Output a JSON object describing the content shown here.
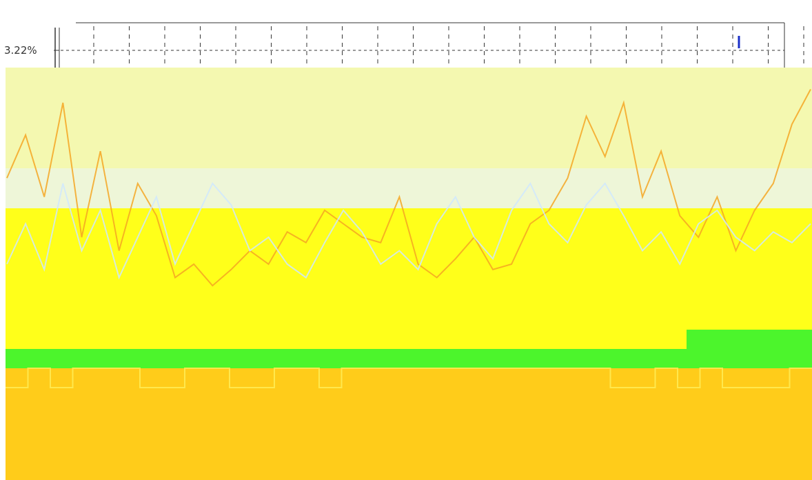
{
  "chart_data": {
    "type": "area",
    "title": "",
    "xlabel": "",
    "ylabel": "",
    "y_tick_labels": [
      "3.22%"
    ],
    "colors": {
      "pale_band": "#f4f8b0",
      "pale_band_2": "#eef6d8",
      "yellow_band": "#ffff1a",
      "green_band": "#4cf52c",
      "orange_band": "#ffcc1a",
      "line_orange": "#f5a623",
      "line_blue": "#cfe8ff",
      "axis": "#333333",
      "marker": "#1a2fc8"
    },
    "series": [
      {
        "values": [
          0.62,
          0.78,
          0.55,
          0.9,
          0.4,
          0.72,
          0.35,
          0.6,
          0.48,
          0.25,
          0.3,
          0.22,
          0.28,
          0.35,
          0.3,
          0.42,
          0.38,
          0.5,
          0.45,
          0.4,
          0.38,
          0.55,
          0.3,
          0.25,
          0.32,
          0.4,
          0.28,
          0.3,
          0.45,
          0.5,
          0.62,
          0.85,
          0.7,
          0.9,
          0.55,
          0.72,
          0.48,
          0.4,
          0.55,
          0.35,
          0.5,
          0.6,
          0.82,
          0.95
        ]
      },
      {
        "values": [
          0.3,
          0.45,
          0.28,
          0.6,
          0.35,
          0.5,
          0.25,
          0.4,
          0.55,
          0.3,
          0.45,
          0.6,
          0.52,
          0.35,
          0.4,
          0.3,
          0.25,
          0.38,
          0.5,
          0.42,
          0.3,
          0.35,
          0.28,
          0.45,
          0.55,
          0.4,
          0.32,
          0.5,
          0.6,
          0.45,
          0.38,
          0.52,
          0.6,
          0.48,
          0.35,
          0.42,
          0.3,
          0.45,
          0.5,
          0.4,
          0.35,
          0.42,
          0.38,
          0.45
        ]
      }
    ],
    "step_series": {
      "values": [
        0,
        1,
        0,
        1,
        1,
        1,
        0,
        0,
        1,
        1,
        0,
        0,
        1,
        1,
        0,
        1,
        1,
        1,
        1,
        1,
        1,
        1,
        1,
        1,
        1,
        1,
        1,
        0,
        0,
        1,
        0,
        1,
        0,
        0,
        0,
        1
      ]
    }
  }
}
